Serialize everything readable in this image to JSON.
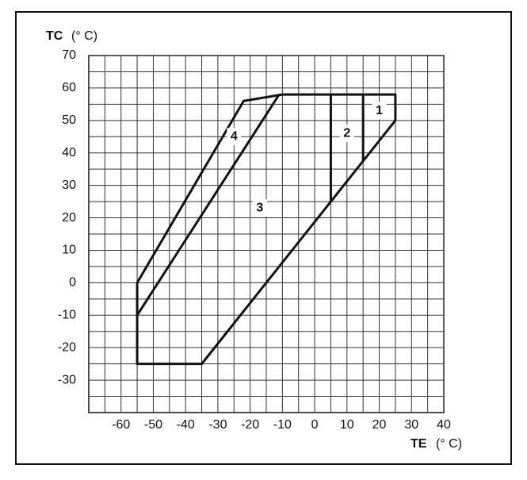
{
  "chart_data": {
    "type": "line",
    "y_label": "TC",
    "y_unit": "(° C)",
    "x_label": "TE",
    "x_unit": "(° C)",
    "xlim": [
      -70,
      40
    ],
    "ylim": [
      -40,
      70
    ],
    "xticks": [
      -60,
      -50,
      -40,
      -30,
      -20,
      -10,
      0,
      10,
      20,
      30,
      40
    ],
    "yticks": [
      -30,
      -20,
      -10,
      0,
      10,
      20,
      30,
      40,
      50,
      60,
      70
    ],
    "xminor": [
      -65,
      -55,
      -45,
      -35,
      -25,
      -15,
      -5,
      5,
      15,
      25,
      35
    ],
    "yminor": [
      -35,
      -25,
      -15,
      -5,
      5,
      15,
      25,
      35,
      45,
      55,
      65
    ],
    "grid": true,
    "color": "#111111",
    "boundaries": [
      {
        "x": [
          -55,
          -22,
          -10,
          25,
          25,
          -35,
          -55,
          -55
        ],
        "y": [
          0,
          56,
          58,
          58,
          50,
          -25,
          -25,
          0
        ]
      },
      {
        "x": [
          -55,
          -11
        ],
        "y": [
          -10,
          58
        ]
      },
      {
        "x": [
          5,
          5
        ],
        "y": [
          25,
          58
        ]
      },
      {
        "x": [
          15,
          15
        ],
        "y": [
          37.5,
          58
        ]
      }
    ],
    "region_labels": [
      {
        "text": "1",
        "x": 20,
        "y": 53
      },
      {
        "text": "2",
        "x": 10,
        "y": 46
      },
      {
        "text": "3",
        "x": -17,
        "y": 23
      },
      {
        "text": "4",
        "x": -25,
        "y": 45
      }
    ]
  }
}
